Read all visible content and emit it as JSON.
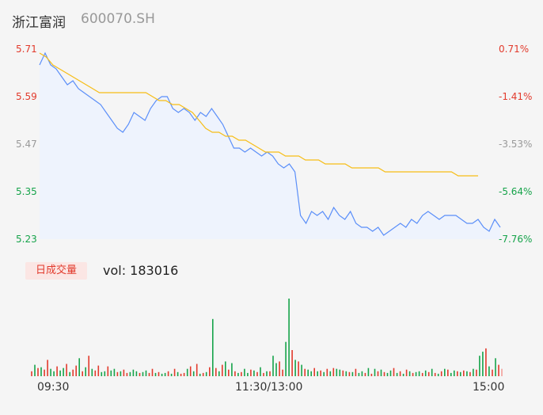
{
  "header": {
    "name": "浙江富润",
    "code": "600070.SH"
  },
  "colors": {
    "price": "#5b8ff9",
    "avg": "#f6bd16",
    "up": "#e23a2c",
    "down": "#16a34a",
    "neutral": "#999999",
    "area": "#eef3fd"
  },
  "volume": {
    "badge": "日成交量",
    "text": "vol: 183016"
  },
  "chart_data": {
    "type": "line",
    "x_ticks": [
      "09:30",
      "11:30/13:00",
      "15:00"
    ],
    "y_left_ticks": [
      "5.71",
      "5.59",
      "5.47",
      "5.35",
      "5.23"
    ],
    "y_right_ticks": [
      "0.71%",
      "-1.41%",
      "-3.53%",
      "-5.64%",
      "-7.76%"
    ],
    "ylim": [
      5.23,
      5.71
    ],
    "price": [
      5.67,
      5.7,
      5.67,
      5.66,
      5.64,
      5.62,
      5.63,
      5.61,
      5.6,
      5.59,
      5.58,
      5.57,
      5.55,
      5.53,
      5.51,
      5.5,
      5.52,
      5.55,
      5.54,
      5.53,
      5.56,
      5.58,
      5.59,
      5.59,
      5.56,
      5.55,
      5.56,
      5.55,
      5.53,
      5.55,
      5.54,
      5.56,
      5.54,
      5.52,
      5.49,
      5.46,
      5.46,
      5.45,
      5.46,
      5.45,
      5.44,
      5.45,
      5.44,
      5.42,
      5.41,
      5.42,
      5.4,
      5.29,
      5.27,
      5.3,
      5.29,
      5.3,
      5.28,
      5.31,
      5.29,
      5.28,
      5.3,
      5.27,
      5.26,
      5.26,
      5.25,
      5.26,
      5.24,
      5.25,
      5.26,
      5.27,
      5.26,
      5.28,
      5.27,
      5.29,
      5.3,
      5.29,
      5.28,
      5.29,
      5.29,
      5.29,
      5.28,
      5.27,
      5.27,
      5.28,
      5.26,
      5.25,
      5.28,
      5.26
    ],
    "avg": [
      5.7,
      5.69,
      5.67,
      5.66,
      5.65,
      5.64,
      5.63,
      5.62,
      5.61,
      5.6,
      5.6,
      5.6,
      5.6,
      5.6,
      5.6,
      5.6,
      5.6,
      5.59,
      5.58,
      5.58,
      5.57,
      5.57,
      5.56,
      5.55,
      5.53,
      5.51,
      5.5,
      5.5,
      5.49,
      5.49,
      5.48,
      5.48,
      5.47,
      5.46,
      5.45,
      5.45,
      5.45,
      5.44,
      5.44,
      5.44,
      5.43,
      5.43,
      5.43,
      5.42,
      5.42,
      5.42,
      5.42,
      5.41,
      5.41,
      5.41,
      5.41,
      5.41,
      5.4,
      5.4,
      5.4,
      5.4,
      5.4,
      5.4,
      5.4,
      5.4,
      5.4,
      5.4,
      5.4,
      5.39,
      5.39,
      5.39,
      5.39
    ],
    "volume": {
      "values": [
        6,
        14,
        10,
        11,
        8,
        20,
        9,
        6,
        12,
        7,
        10,
        15,
        5,
        8,
        13,
        22,
        6,
        11,
        25,
        9,
        7,
        13,
        5,
        6,
        12,
        7,
        9,
        5,
        6,
        8,
        4,
        5,
        8,
        6,
        4,
        5,
        7,
        4,
        9,
        4,
        5,
        3,
        4,
        6,
        3,
        9,
        5,
        3,
        4,
        9,
        12,
        6,
        15,
        3,
        4,
        5,
        11,
        70,
        10,
        6,
        14,
        18,
        8,
        16,
        6,
        4,
        5,
        9,
        4,
        8,
        7,
        5,
        11,
        4,
        6,
        6,
        25,
        16,
        18,
        8,
        42,
        95,
        32,
        20,
        18,
        14,
        9,
        8,
        6,
        10,
        6,
        7,
        5,
        9,
        6,
        10,
        9,
        8,
        7,
        6,
        5,
        5,
        9,
        4,
        6,
        4,
        10,
        3,
        9,
        6,
        8,
        5,
        4,
        7,
        10,
        4,
        6,
        3,
        8,
        6,
        4,
        5,
        6,
        4,
        7,
        5,
        9,
        4,
        3,
        6,
        9,
        8,
        4,
        7,
        6,
        5,
        7,
        6,
        5,
        9,
        8,
        25,
        30,
        34,
        12,
        8,
        22,
        14,
        9
      ],
      "colors": [
        "u",
        "d",
        "u",
        "d",
        "u",
        "u",
        "d",
        "d",
        "u",
        "d",
        "d",
        "u",
        "d",
        "u",
        "u",
        "d",
        "u",
        "d",
        "u",
        "d",
        "u",
        "u",
        "d",
        "d",
        "u",
        "d",
        "d",
        "u",
        "d",
        "u",
        "u",
        "d",
        "d",
        "d",
        "u",
        "d",
        "d",
        "u",
        "u",
        "d",
        "u",
        "d",
        "d",
        "u",
        "d",
        "u",
        "d",
        "u",
        "u",
        "d",
        "u",
        "d",
        "u",
        "d",
        "u",
        "d",
        "u",
        "d",
        "u",
        "d",
        "u",
        "d",
        "u",
        "d",
        "u",
        "d",
        "u",
        "d",
        "d",
        "u",
        "d",
        "u",
        "d",
        "u",
        "d",
        "u",
        "d",
        "d",
        "u",
        "u",
        "d",
        "d",
        "u",
        "d",
        "u",
        "d",
        "u",
        "d",
        "d",
        "u",
        "d",
        "u",
        "d",
        "u",
        "d",
        "u",
        "d",
        "d",
        "u",
        "d",
        "u",
        "d",
        "u",
        "d",
        "d",
        "u",
        "d",
        "u",
        "d",
        "u",
        "d",
        "u",
        "d",
        "d",
        "u",
        "d",
        "u",
        "d",
        "u",
        "d",
        "u",
        "d",
        "d",
        "u",
        "d",
        "u",
        "d",
        "u",
        "d",
        "u",
        "d",
        "u",
        "d",
        "d",
        "u",
        "d",
        "u",
        "d",
        "u",
        "d",
        "u",
        "d",
        "d",
        "u",
        "d",
        "u",
        "d",
        "u",
        "n"
      ]
    }
  }
}
